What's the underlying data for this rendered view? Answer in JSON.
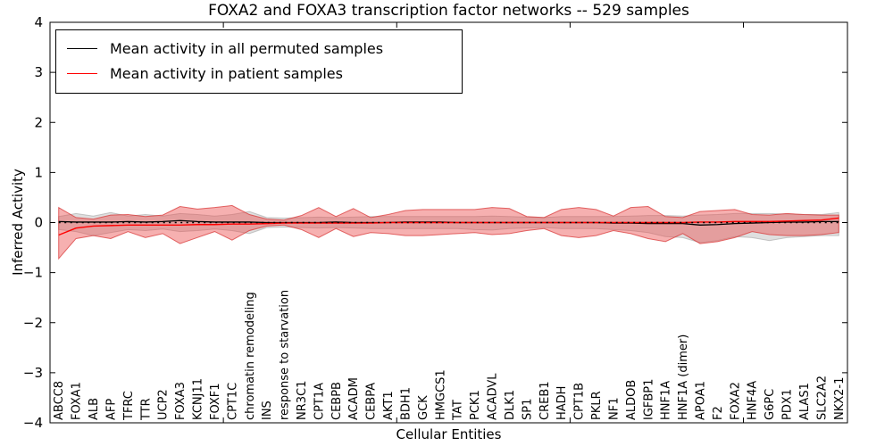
{
  "title": "FOXA2 and FOXA3 transcription factor networks -- 529 samples",
  "axes": {
    "ylabel": "Inferred Activity",
    "xlabel": "Cellular Entities",
    "ytick_labels": [
      "4",
      "3",
      "2",
      "1",
      "0",
      "−1",
      "−2",
      "−3",
      "−4"
    ],
    "ytick_values": [
      4,
      3,
      2,
      1,
      0,
      -1,
      -2,
      -3,
      -4
    ],
    "xtick_positions": [
      10,
      20,
      30,
      40
    ]
  },
  "legend": {
    "entries": [
      {
        "label": "Mean activity in all permuted samples",
        "color": "#000000"
      },
      {
        "label": "Mean activity in patient samples",
        "color": "#ff0000"
      }
    ]
  },
  "colors": {
    "permuted_line": "#000000",
    "patient_line": "#ff0000",
    "patient_band_fill": "rgba(235,80,80,0.45)",
    "patient_band_edge": "rgba(215,45,45,0.7)",
    "permuted_band_fill": "rgba(150,150,150,0.30)",
    "permuted_band_edge": "rgba(140,140,140,0.45)",
    "zero_line": "#000000",
    "background": "#ffffff"
  },
  "chart_data": {
    "type": "line",
    "title": "FOXA2 and FOXA3 transcription factor networks -- 529 samples",
    "xlabel": "Cellular Entities",
    "ylabel": "Inferred Activity",
    "ylim": [
      -4,
      4
    ],
    "grid": false,
    "legend_position": "upper left",
    "categories": [
      "ABCC8",
      "FOXA1",
      "ALB",
      "AFP",
      "TFRC",
      "TTR",
      "UCP2",
      "FOXA3",
      "KCNJ11",
      "FOXF1",
      "CPT1C",
      "chromatin remodeling",
      "INS",
      "response to starvation",
      "NR3C1",
      "CPT1A",
      "CEBPB",
      "ACADM",
      "CEBPA",
      "AKT1",
      "BDH1",
      "GCK",
      "HMGCS1",
      "TAT",
      "PCK1",
      "ACADVL",
      "DLK1",
      "SP1",
      "CREB1",
      "HADH",
      "CPT1B",
      "PKLR",
      "NF1",
      "ALDOB",
      "IGFBP1",
      "HNF1A",
      "HNF1A (dimer)",
      "APOA1",
      "F2",
      "FOXA2",
      "HNF4A",
      "G6PC",
      "PDX1",
      "ALAS1",
      "SLC2A2",
      "NKX2-1"
    ],
    "series": [
      {
        "name": "Mean activity in all permuted samples",
        "color": "#000000",
        "values": [
          0.02,
          0.01,
          0.01,
          0.01,
          0.02,
          0.01,
          0.02,
          0.04,
          0.02,
          0.01,
          0.01,
          0.01,
          0.0,
          0.0,
          0.0,
          0.0,
          0.01,
          0.0,
          0.0,
          0.0,
          0.01,
          0.01,
          0.01,
          0.0,
          0.0,
          0.0,
          0.0,
          0.0,
          0.0,
          0.0,
          0.0,
          0.0,
          -0.01,
          -0.01,
          -0.02,
          -0.02,
          -0.02,
          -0.05,
          -0.04,
          -0.02,
          -0.01,
          0.0,
          0.01,
          0.01,
          0.02,
          0.02
        ]
      },
      {
        "name": "Mean activity in patient samples",
        "color": "#ff0000",
        "values": [
          -0.25,
          -0.11,
          -0.07,
          -0.06,
          -0.05,
          -0.05,
          -0.05,
          -0.05,
          -0.04,
          -0.04,
          -0.03,
          -0.03,
          -0.02,
          -0.01,
          -0.01,
          -0.01,
          -0.01,
          -0.01,
          -0.01,
          0.0,
          0.0,
          0.0,
          0.0,
          0.0,
          0.0,
          0.0,
          0.0,
          0.0,
          0.0,
          0.0,
          0.0,
          0.0,
          0.0,
          0.0,
          0.0,
          0.0,
          0.0,
          0.01,
          0.01,
          0.02,
          0.02,
          0.02,
          0.03,
          0.04,
          0.05,
          0.09
        ]
      }
    ],
    "bands": [
      {
        "name": "permuted-std-band",
        "upper": [
          0.12,
          0.18,
          0.13,
          0.2,
          0.13,
          0.16,
          0.13,
          0.18,
          0.16,
          0.13,
          0.16,
          0.22,
          0.1,
          0.09,
          0.1,
          0.11,
          0.1,
          0.11,
          0.12,
          0.12,
          0.12,
          0.12,
          0.12,
          0.12,
          0.12,
          0.13,
          0.12,
          0.11,
          0.1,
          0.12,
          0.12,
          0.12,
          0.12,
          0.13,
          0.14,
          0.14,
          0.13,
          0.15,
          0.16,
          0.18,
          0.18,
          0.18,
          0.17,
          0.16,
          0.16,
          0.2
        ],
        "lower": [
          -0.14,
          -0.18,
          -0.26,
          -0.2,
          -0.14,
          -0.16,
          -0.13,
          -0.18,
          -0.16,
          -0.13,
          -0.16,
          -0.22,
          -0.1,
          -0.09,
          -0.1,
          -0.11,
          -0.1,
          -0.11,
          -0.12,
          -0.12,
          -0.12,
          -0.12,
          -0.12,
          -0.12,
          -0.14,
          -0.15,
          -0.12,
          -0.11,
          -0.1,
          -0.12,
          -0.12,
          -0.12,
          -0.14,
          -0.16,
          -0.2,
          -0.28,
          -0.3,
          -0.4,
          -0.36,
          -0.28,
          -0.3,
          -0.36,
          -0.3,
          -0.28,
          -0.26,
          -0.26
        ]
      },
      {
        "name": "patient-std-band",
        "upper": [
          0.3,
          0.1,
          0.07,
          0.15,
          0.16,
          0.12,
          0.15,
          0.32,
          0.27,
          0.3,
          0.34,
          0.16,
          0.07,
          0.05,
          0.14,
          0.3,
          0.12,
          0.28,
          0.1,
          0.16,
          0.24,
          0.26,
          0.26,
          0.26,
          0.26,
          0.3,
          0.28,
          0.12,
          0.1,
          0.26,
          0.3,
          0.26,
          0.13,
          0.3,
          0.32,
          0.12,
          0.1,
          0.22,
          0.24,
          0.26,
          0.16,
          0.15,
          0.18,
          0.16,
          0.15,
          0.15
        ],
        "lower": [
          -0.72,
          -0.32,
          -0.26,
          -0.32,
          -0.18,
          -0.3,
          -0.22,
          -0.42,
          -0.3,
          -0.18,
          -0.35,
          -0.16,
          -0.07,
          -0.05,
          -0.14,
          -0.3,
          -0.12,
          -0.28,
          -0.2,
          -0.22,
          -0.26,
          -0.26,
          -0.24,
          -0.22,
          -0.2,
          -0.24,
          -0.22,
          -0.16,
          -0.12,
          -0.26,
          -0.3,
          -0.26,
          -0.16,
          -0.22,
          -0.32,
          -0.38,
          -0.22,
          -0.42,
          -0.38,
          -0.3,
          -0.18,
          -0.24,
          -0.26,
          -0.26,
          -0.24,
          -0.2
        ]
      }
    ],
    "zero_line": {
      "show": true,
      "style": "dotted",
      "color": "#000000",
      "y": 0
    }
  }
}
